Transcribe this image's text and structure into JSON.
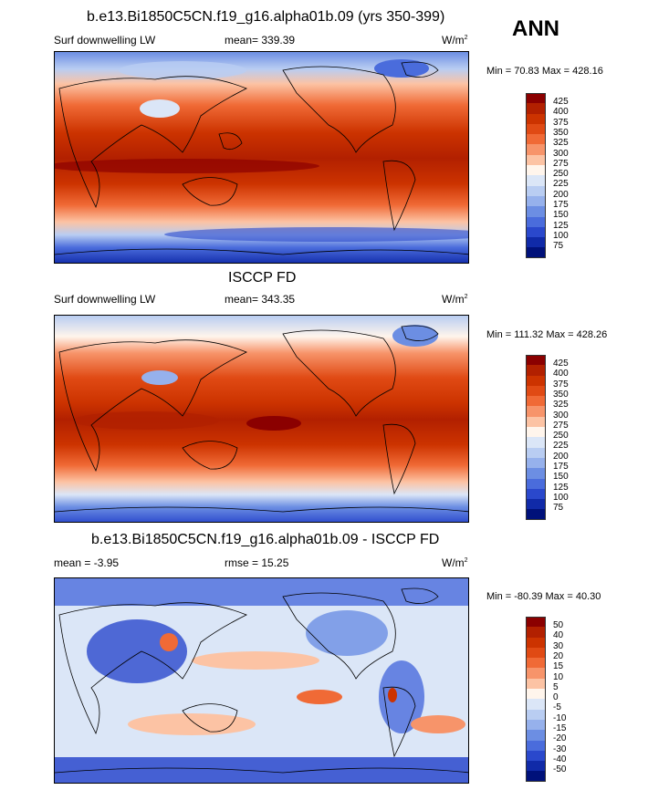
{
  "season": "ANN",
  "panels": [
    {
      "title": "b.e13.Bi1850C5CN.f19_g16.alpha01b.09 (yrs 350-399)",
      "left_label": "Surf downwelling LW",
      "center_label": "mean= 339.39",
      "units": "W/m",
      "units_exp": "2",
      "minmax": "Min =  70.83 Max = 428.16",
      "levels": [
        "425",
        "400",
        "375",
        "350",
        "325",
        "300",
        "275",
        "250",
        "225",
        "200",
        "175",
        "150",
        "125",
        "100",
        "75"
      ],
      "colors": [
        "#8b0000",
        "#b22000",
        "#cc3300",
        "#e04a14",
        "#f06a36",
        "#f7946a",
        "#fcc3a4",
        "#fff5ec",
        "#dbe6f7",
        "#b9cdf2",
        "#96b1ec",
        "#6c8ee3",
        "#4a6cdc",
        "#2a48cc",
        "#102aa8",
        "#00117a"
      ]
    },
    {
      "title": "ISCCP FD",
      "left_label": "Surf downwelling LW",
      "center_label": "mean= 343.35",
      "units": "W/m",
      "units_exp": "2",
      "minmax": "Min = 111.32 Max = 428.26",
      "levels": [
        "425",
        "400",
        "375",
        "350",
        "325",
        "300",
        "275",
        "250",
        "225",
        "200",
        "175",
        "150",
        "125",
        "100",
        "75"
      ],
      "colors": [
        "#8b0000",
        "#b22000",
        "#cc3300",
        "#e04a14",
        "#f06a36",
        "#f7946a",
        "#fcc3a4",
        "#fff5ec",
        "#dbe6f7",
        "#b9cdf2",
        "#96b1ec",
        "#6c8ee3",
        "#4a6cdc",
        "#2a48cc",
        "#102aa8",
        "#00117a"
      ]
    },
    {
      "title": "b.e13.Bi1850C5CN.f19_g16.alpha01b.09 - ISCCP FD",
      "left_label": "mean =  -3.95",
      "center_label": "rmse =  15.25",
      "units": "W/m",
      "units_exp": "2",
      "minmax": "Min = -80.39 Max =  40.30",
      "levels": [
        "50",
        "40",
        "30",
        "20",
        "15",
        "10",
        "5",
        "0",
        "-5",
        "-10",
        "-15",
        "-20",
        "-30",
        "-40",
        "-50"
      ],
      "colors": [
        "#8b0000",
        "#b22000",
        "#cc3300",
        "#e04a14",
        "#f06a36",
        "#f7946a",
        "#fcc3a4",
        "#fff5ec",
        "#dbe6f7",
        "#b9cdf2",
        "#96b1ec",
        "#6c8ee3",
        "#4a6cdc",
        "#2a48cc",
        "#102aa8",
        "#00117a"
      ]
    }
  ]
}
